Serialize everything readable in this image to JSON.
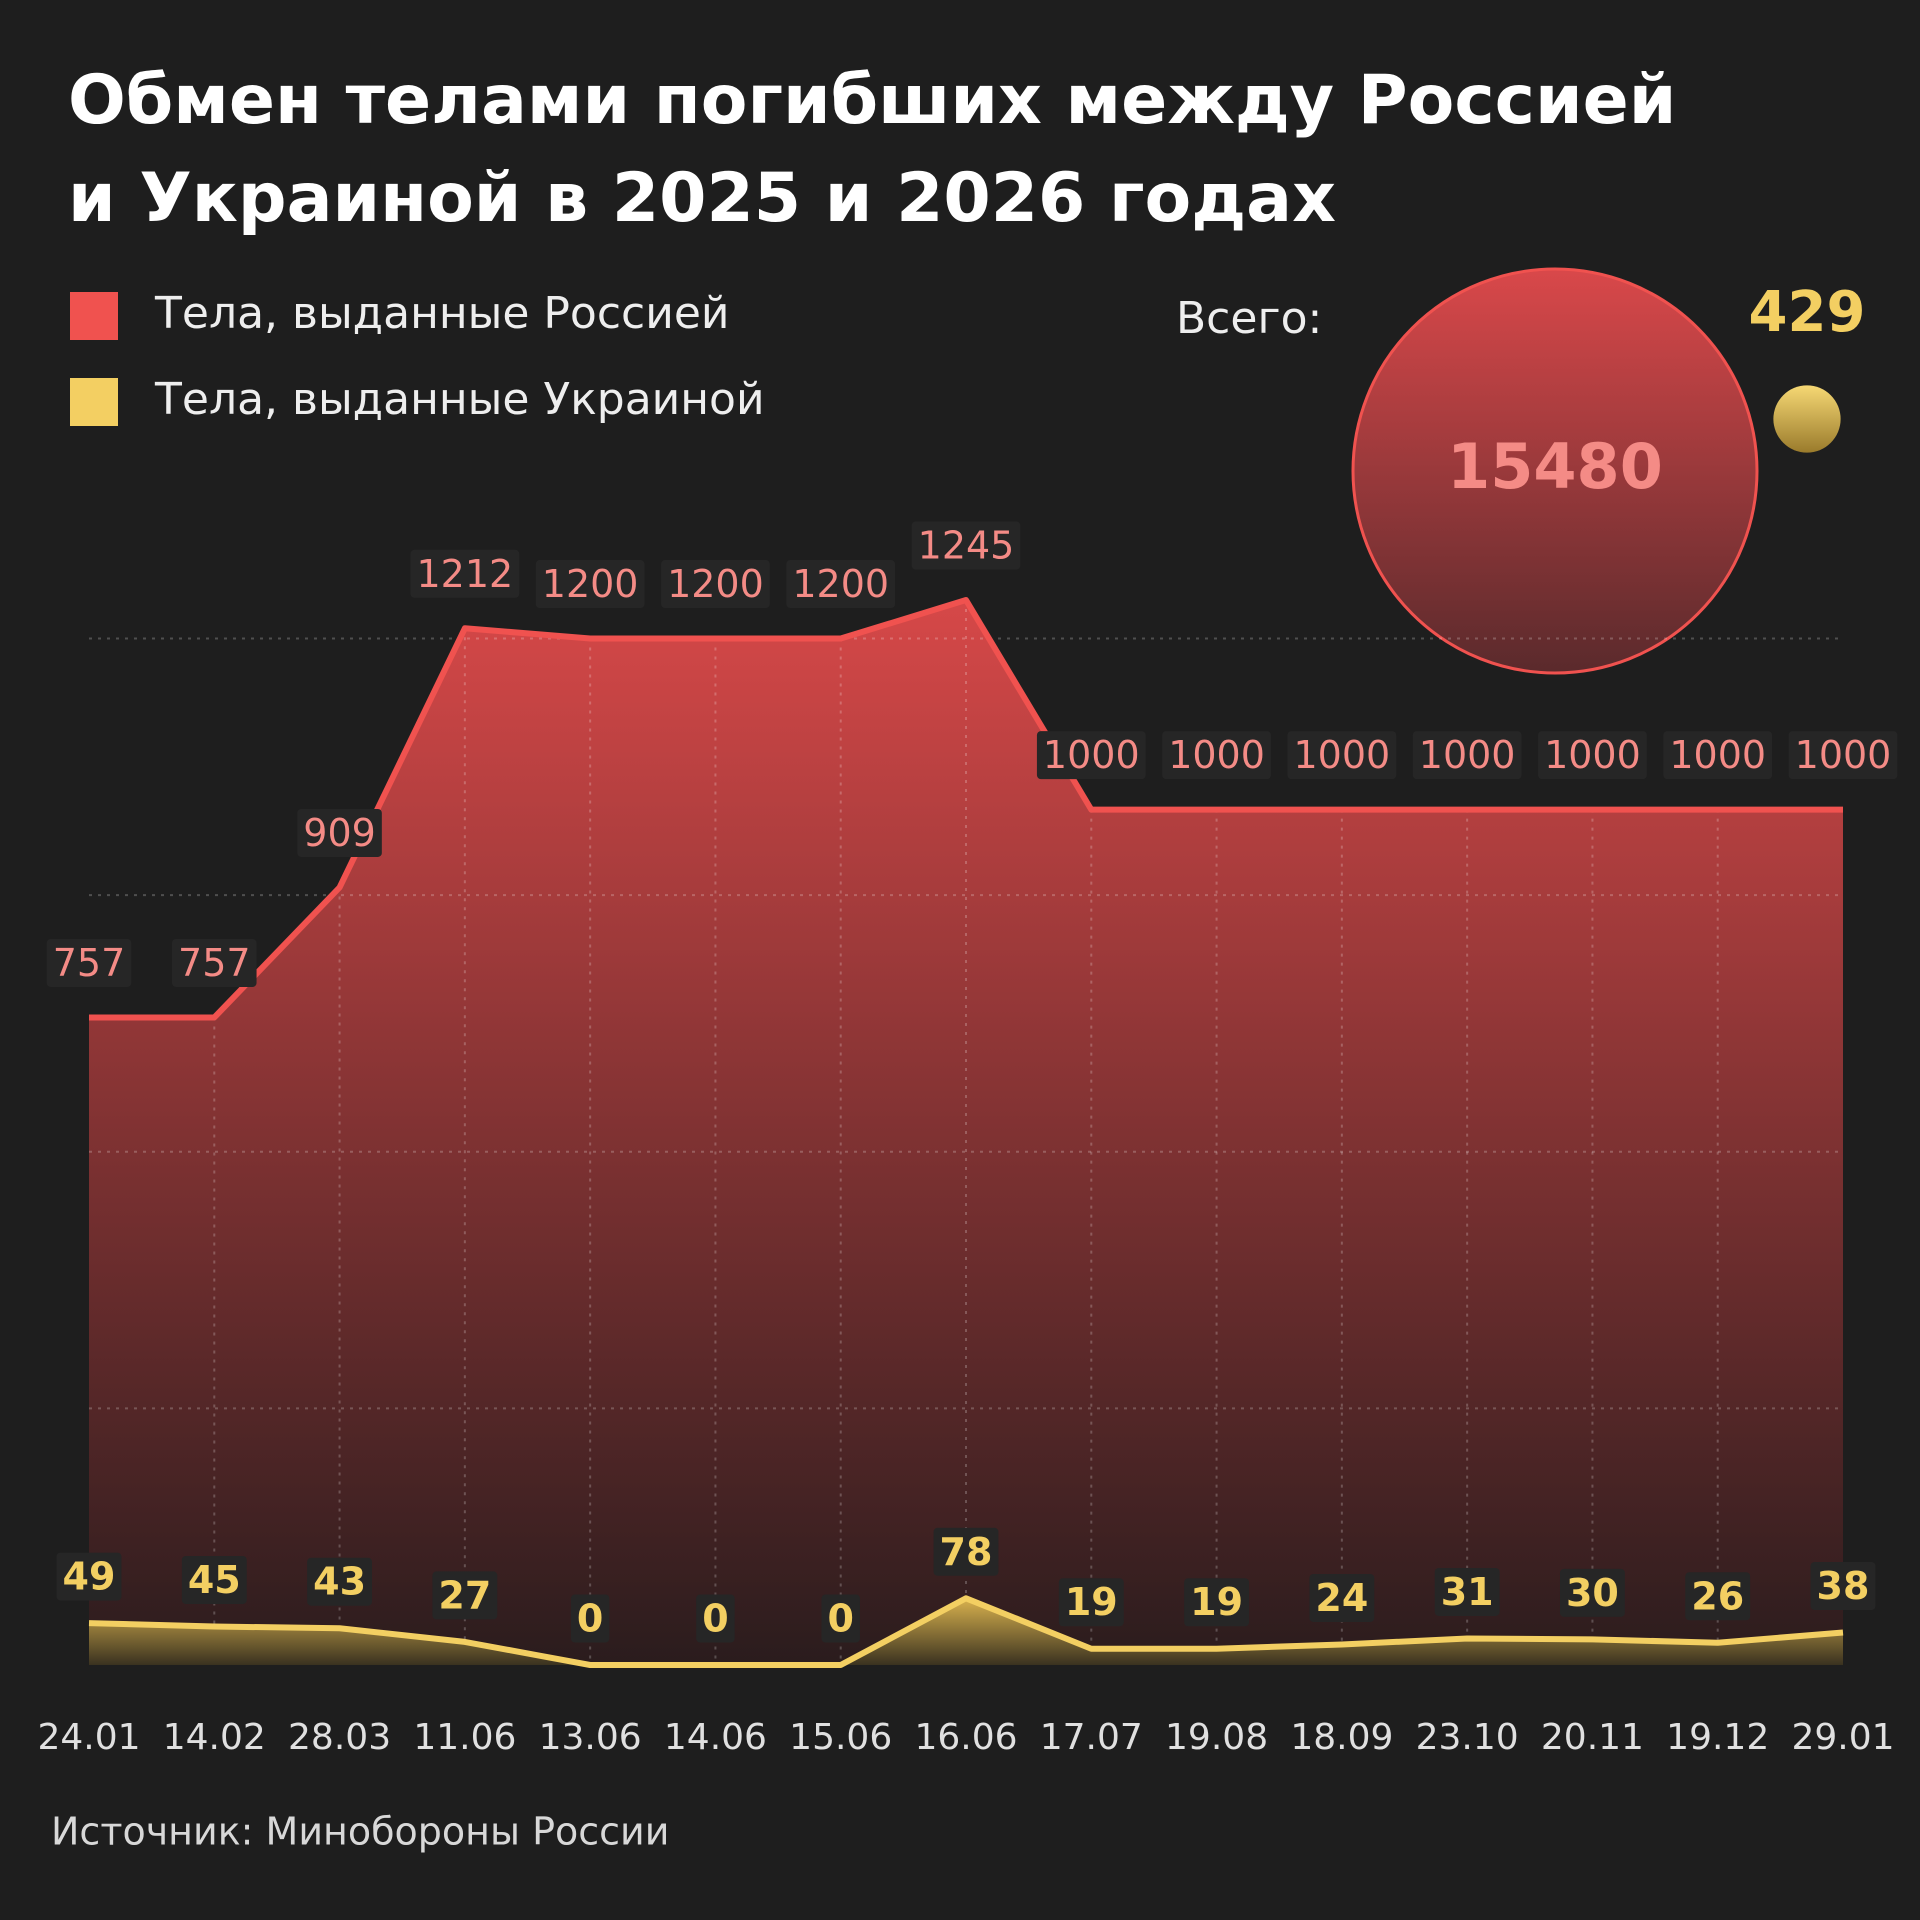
{
  "chart_data": {
    "type": "area",
    "title": "Обмен телами погибших между Россией\nи Украиной в 2025 и 2026 годах",
    "categories": [
      "24.01",
      "14.02",
      "28.03",
      "11.06",
      "13.06",
      "14.06",
      "15.06",
      "16.06",
      "17.07",
      "19.08",
      "18.09",
      "23.10",
      "20.11",
      "19.12",
      "29.01"
    ],
    "series": [
      {
        "name": "Тела, выданные Россией",
        "color": "#f0524f",
        "total": 15480,
        "values": [
          757,
          757,
          909,
          1212,
          1200,
          1200,
          1200,
          1245,
          1000,
          1000,
          1000,
          1000,
          1000,
          1000,
          1000
        ]
      },
      {
        "name": "Тела, выданные Украиной",
        "color": "#f3cf62",
        "total": 429,
        "values": [
          49,
          45,
          43,
          27,
          0,
          0,
          0,
          78,
          19,
          19,
          24,
          31,
          30,
          26,
          38
        ]
      }
    ],
    "total_label": "Всего:",
    "ylim": [
      0,
      1300
    ],
    "yticks": [
      300,
      600,
      900,
      1200
    ],
    "grid": true,
    "source": "Источник: Минобороны России"
  }
}
